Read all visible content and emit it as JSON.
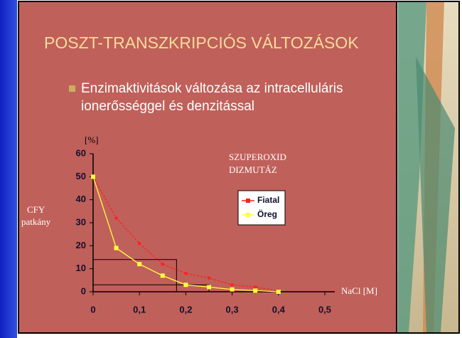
{
  "slide": {
    "title": "POSZT-TRANSZKRIPCIÓS VÁLTOZÁSOK",
    "bullet": [
      "Enzimaktivitások változása az intracelluláris",
      "ionerősséggel és denzitással"
    ]
  },
  "chart_data": {
    "type": "line",
    "title": [
      "SZUPEROXID",
      "DIZMUTÁZ"
    ],
    "y_unit": "[%]",
    "y_label": [
      "CFY",
      "patkány"
    ],
    "x_label": "NaCl [M]",
    "x": [
      0,
      0.05,
      0.1,
      0.15,
      0.2,
      0.25,
      0.3,
      0.35,
      0.4
    ],
    "series": [
      {
        "name": "Fiatal",
        "color": "#ff2020",
        "values": [
          50,
          32,
          21,
          12,
          8,
          6,
          3,
          2,
          0.5
        ]
      },
      {
        "name": "Öreg",
        "color": "#ffff40",
        "values": [
          50,
          19,
          12,
          7,
          3,
          2,
          1,
          0.5,
          0
        ]
      }
    ],
    "guides": [
      {
        "x": 0.18,
        "y": 14
      },
      {
        "x": 0.25,
        "y": 3
      }
    ],
    "xlim": [
      0,
      0.5
    ],
    "xticks": [
      0,
      {
        "value": 0.1,
        "label": "0,1"
      },
      {
        "value": 0.2,
        "label": "0,2"
      },
      {
        "value": 0.3,
        "label": "0,3"
      },
      {
        "value": 0.4,
        "label": "0,4"
      },
      {
        "value": 0.5,
        "label": "0,5"
      }
    ],
    "ylim": [
      0,
      60
    ],
    "yticks": [
      0,
      10,
      20,
      30,
      40,
      50,
      60
    ]
  }
}
